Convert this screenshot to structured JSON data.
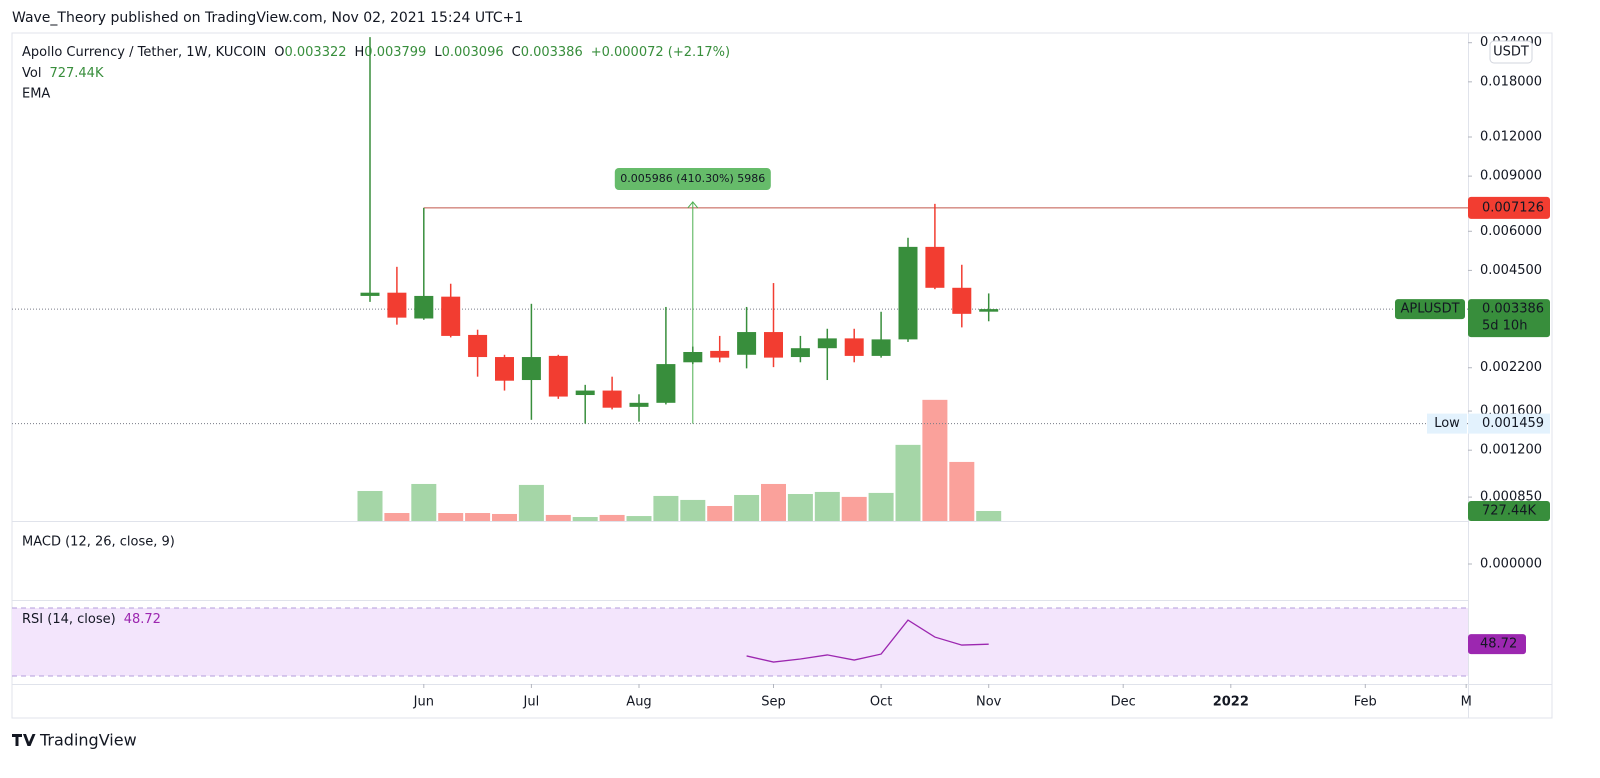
{
  "header": "Wave_Theory published on TradingView.com, Nov 02, 2021 15:24 UTC+1",
  "footer": "TradingView",
  "chart_data": {
    "type": "candlestick",
    "title": "Apollo Currency / Tether, 1W, KUCOIN",
    "legend_keys": [
      "O",
      "H",
      "L",
      "C"
    ],
    "change_label": "+0.000072 (+2.17%)",
    "volume_title": "Vol",
    "volume_label": "727.44K",
    "ema_title": "EMA",
    "macd_title": "MACD (12, 26, close, 9)",
    "rsi_title": "RSI (14, close)",
    "currency": "USDT",
    "symbol": "APLUSDT",
    "countdown": "5d 10h",
    "low_title": "Low",
    "log_scale": true,
    "up_color": "#388e3c",
    "down_color": "#f23d31",
    "up_volume_color": "#a5d6a7",
    "down_volume_color": "#faa19b",
    "categories": [
      null,
      null,
      null,
      null,
      null,
      null,
      null,
      null,
      null,
      null,
      null,
      null,
      null,
      null,
      null,
      null,
      null,
      null,
      null,
      null,
      null,
      null,
      null,
      null
    ],
    "ohlc": {
      "open": [
        0.00373,
        0.00382,
        0.00316,
        0.00371,
        0.0028,
        0.00238,
        0.00201,
        0.0024,
        0.0018,
        0.00186,
        0.00165,
        0.0017,
        0.00229,
        0.00249,
        0.00242,
        0.00286,
        0.00238,
        0.00254,
        0.00273,
        0.0024,
        0.00271,
        0.00535,
        0.00396,
        0.003322
      ],
      "high": [
        0.025,
        0.00462,
        0.007126,
        0.00408,
        0.00291,
        0.00242,
        0.00352,
        0.00242,
        0.00194,
        0.00206,
        0.00181,
        0.00344,
        0.00257,
        0.00278,
        0.00344,
        0.0041,
        0.00278,
        0.00293,
        0.00293,
        0.00332,
        0.00572,
        0.00734,
        0.00469,
        0.003799
      ],
      "low": [
        0.00357,
        0.00302,
        0.00313,
        0.00275,
        0.00206,
        0.00186,
        0.0015,
        0.00175,
        0.001459,
        0.00162,
        0.00148,
        0.00168,
        0.00226,
        0.00229,
        0.00219,
        0.00221,
        0.00229,
        0.00201,
        0.00229,
        0.00237,
        0.00266,
        0.00392,
        0.00296,
        0.003096
      ],
      "close": [
        0.00382,
        0.00318,
        0.00373,
        0.00278,
        0.00238,
        0.002,
        0.00238,
        0.00178,
        0.00186,
        0.00164,
        0.0017,
        0.00226,
        0.00247,
        0.00237,
        0.00286,
        0.00237,
        0.00254,
        0.00273,
        0.0024,
        0.00271,
        0.00535,
        0.00396,
        0.00327,
        0.003386
      ]
    },
    "volume": [
      2180000,
      580000,
      2690000,
      580000,
      580000,
      510000,
      2620000,
      440000,
      290000,
      440000,
      360000,
      1820000,
      1530000,
      1090000,
      1890000,
      2690000,
      1960000,
      2110000,
      1750000,
      2040000,
      5530000,
      8800000,
      4290000,
      727440
    ],
    "volume_ylim": [
      0,
      35300000
    ],
    "ylim": [
      0.000713,
      0.0254
    ],
    "yticks": [
      {
        "value": 0.024,
        "label": "0.024000"
      },
      {
        "value": 0.018,
        "label": "0.018000"
      },
      {
        "value": 0.012,
        "label": "0.012000"
      },
      {
        "value": 0.009,
        "label": "0.009000"
      },
      {
        "value": 0.006,
        "label": "0.006000"
      },
      {
        "value": 0.0045,
        "label": "0.004500"
      },
      {
        "value": 0.0022,
        "label": "0.002200"
      },
      {
        "value": 0.0016,
        "label": "0.001600"
      },
      {
        "value": 0.0012,
        "label": "0.001200"
      },
      {
        "value": 0.00085,
        "label": "0.000850"
      }
    ],
    "xticks": [
      {
        "value": 2,
        "label": "Jun"
      },
      {
        "value": 6,
        "label": "Jul"
      },
      {
        "value": 10,
        "label": "Aug"
      },
      {
        "value": 15,
        "label": "Sep"
      },
      {
        "value": 19,
        "label": "Oct"
      },
      {
        "value": 23,
        "label": "Nov"
      },
      {
        "value": 28,
        "label": "Dec"
      },
      {
        "value": 32,
        "label": "2022"
      },
      {
        "value": 37,
        "label": "Feb"
      },
      {
        "value": 40.75,
        "label": "M"
      }
    ],
    "macd_yticks": [
      {
        "value": 0,
        "label": "0.000000"
      }
    ],
    "low_value": 0.001459,
    "resistance": {
      "value": 0.007126,
      "start": 2,
      "color": "#c0564a"
    },
    "measure": {
      "index": 12,
      "from": 0.001459,
      "to": 0.007445,
      "label": "0.005986 (410.30%) 5986",
      "color": "#4caf50"
    },
    "rsi": [
      null,
      null,
      null,
      null,
      null,
      null,
      null,
      null,
      null,
      null,
      null,
      null,
      null,
      null,
      41.8,
      38.2,
      40.0,
      42.4,
      39.4,
      42.9,
      62.9,
      52.9,
      48.2,
      48.72
    ],
    "rsi_color": "#9c27b0",
    "rsi_ylim": [
      25.3,
      74.7
    ],
    "rsi_bands": [
      30,
      70
    ]
  }
}
